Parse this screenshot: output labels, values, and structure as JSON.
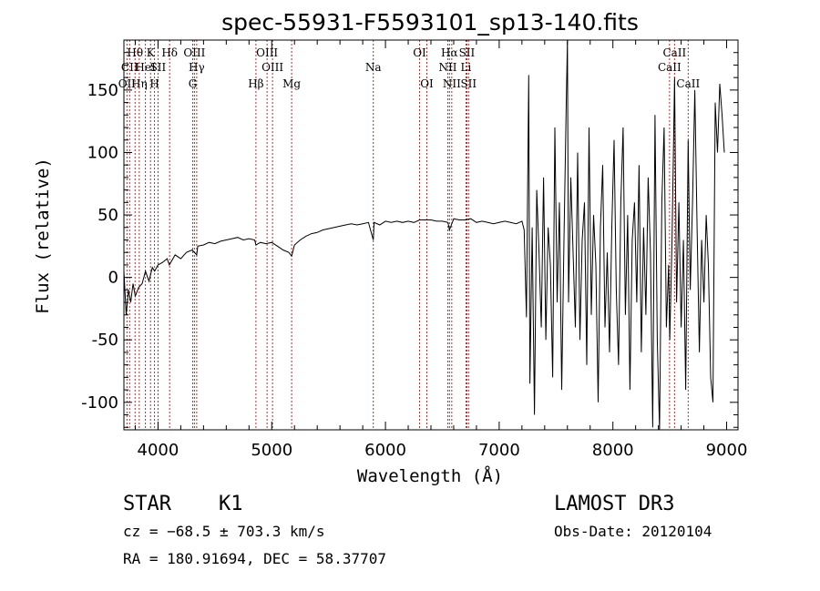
{
  "chart_data": {
    "type": "line",
    "title": "spec-55931-F5593101_sp13-140.fits",
    "xlabel": "Wavelength (Å)",
    "ylabel": "Flux (relative)",
    "xlim": [
      3700,
      9100
    ],
    "ylim": [
      -122,
      190
    ],
    "x_ticks": [
      4000,
      5000,
      6000,
      7000,
      8000,
      9000
    ],
    "y_ticks": [
      -100,
      -50,
      0,
      50,
      100,
      150
    ],
    "line_color": "#000000",
    "marker_color": "#b03030",
    "series": [
      {
        "name": "flux",
        "x": [
          3700,
          3720,
          3740,
          3760,
          3780,
          3800,
          3830,
          3860,
          3890,
          3920,
          3950,
          3970,
          4000,
          4040,
          4080,
          4100,
          4150,
          4200,
          4250,
          4300,
          4340,
          4350,
          4400,
          4450,
          4500,
          4550,
          4600,
          4650,
          4700,
          4750,
          4800,
          4850,
          4861,
          4900,
          4950,
          5000,
          5050,
          5100,
          5150,
          5175,
          5200,
          5250,
          5300,
          5350,
          5400,
          5450,
          5500,
          5550,
          5600,
          5650,
          5700,
          5750,
          5800,
          5850,
          5893,
          5900,
          5950,
          6000,
          6050,
          6100,
          6150,
          6200,
          6250,
          6300,
          6350,
          6400,
          6450,
          6500,
          6550,
          6563,
          6600,
          6650,
          6700,
          6750,
          6800,
          6850,
          6900,
          6950,
          7000,
          7050,
          7100,
          7150,
          7200,
          7220,
          7240,
          7260,
          7270,
          7290,
          7310,
          7330,
          7350,
          7370,
          7390,
          7410,
          7430,
          7450,
          7470,
          7490,
          7510,
          7530,
          7550,
          7570,
          7590,
          7600,
          7610,
          7630,
          7650,
          7670,
          7690,
          7710,
          7730,
          7750,
          7770,
          7790,
          7810,
          7830,
          7850,
          7870,
          7890,
          7910,
          7930,
          7950,
          7970,
          7990,
          8010,
          8030,
          8050,
          8070,
          8090,
          8110,
          8130,
          8150,
          8170,
          8190,
          8210,
          8230,
          8250,
          8270,
          8290,
          8310,
          8330,
          8350,
          8370,
          8390,
          8410,
          8430,
          8450,
          8470,
          8490,
          8500,
          8520,
          8542,
          8560,
          8580,
          8600,
          8620,
          8640,
          8662,
          8680,
          8700,
          8720,
          8740,
          8760,
          8780,
          8800,
          8820,
          8840,
          8860,
          8880,
          8900,
          8920,
          8940,
          8960,
          8980
        ],
        "y": [
          5,
          -30,
          -10,
          -20,
          -5,
          -15,
          -8,
          -5,
          5,
          -3,
          8,
          5,
          10,
          12,
          15,
          10,
          18,
          15,
          20,
          22,
          18,
          25,
          26,
          28,
          27,
          29,
          30,
          31,
          32,
          30,
          31,
          30,
          26,
          28,
          27,
          28,
          25,
          22,
          20,
          17,
          26,
          30,
          33,
          35,
          36,
          38,
          39,
          40,
          41,
          42,
          43,
          42,
          43,
          44,
          30,
          44,
          42,
          45,
          44,
          45,
          44,
          45,
          44,
          46,
          46,
          46,
          45,
          45,
          44,
          38,
          47,
          46,
          46,
          47,
          44,
          45,
          44,
          43,
          44,
          45,
          44,
          43,
          45,
          38,
          -32,
          162,
          -85,
          40,
          -110,
          70,
          20,
          -40,
          80,
          -50,
          40,
          10,
          -80,
          120,
          -20,
          60,
          -90,
          30,
          140,
          190,
          -20,
          80,
          20,
          -40,
          100,
          -50,
          30,
          60,
          -70,
          120,
          -30,
          50,
          10,
          -100,
          40,
          90,
          -40,
          20,
          -60,
          40,
          110,
          -10,
          -70,
          60,
          120,
          -30,
          50,
          -90,
          30,
          60,
          -20,
          90,
          -60,
          40,
          -30,
          80,
          20,
          -120,
          130,
          -50,
          -130,
          60,
          120,
          -40,
          10,
          -50,
          30,
          160,
          -20,
          60,
          -40,
          30,
          -90,
          110,
          -10,
          60,
          150,
          40,
          -60,
          30,
          -20,
          50,
          10,
          -80,
          -100,
          140,
          100,
          155,
          130,
          100
        ]
      }
    ],
    "lines": [
      {
        "label": "Hθ",
        "x": 3798,
        "row": 1
      },
      {
        "label": "CII",
        "x": 3750,
        "row": 2
      },
      {
        "label": "OII",
        "x": 3727,
        "row": 3
      },
      {
        "label": "Hη",
        "x": 3835,
        "row": 3
      },
      {
        "label": "HeI",
        "x": 3889,
        "row": 2
      },
      {
        "label": "K",
        "x": 3934,
        "row": 1
      },
      {
        "label": "H",
        "x": 3969,
        "row": 3
      },
      {
        "label": "SII",
        "x": 4000,
        "row": 2
      },
      {
        "label": "Hδ",
        "x": 4102,
        "row": 1
      },
      {
        "label": "OIII",
        "x": 4320,
        "row": 1
      },
      {
        "label": "Hγ",
        "x": 4340,
        "row": 2
      },
      {
        "label": "G",
        "x": 4305,
        "row": 3
      },
      {
        "label": "OIII",
        "x": 4959,
        "row": 1
      },
      {
        "label": "OIII",
        "x": 5007,
        "row": 2
      },
      {
        "label": "Hβ",
        "x": 4861,
        "row": 3
      },
      {
        "label": "Mg",
        "x": 5175,
        "row": 3
      },
      {
        "label": "Na",
        "x": 5893,
        "row": 2
      },
      {
        "label": "OI",
        "x": 6300,
        "row": 1
      },
      {
        "label": "OI",
        "x": 6364,
        "row": 3
      },
      {
        "label": "Hα",
        "x": 6563,
        "row": 1
      },
      {
        "label": "NII",
        "x": 6548,
        "row": 2
      },
      {
        "label": "NII",
        "x": 6583,
        "row": 3
      },
      {
        "label": "SII",
        "x": 6716,
        "row": 1
      },
      {
        "label": "Li",
        "x": 6708,
        "row": 2
      },
      {
        "label": "SII",
        "x": 6731,
        "row": 3
      },
      {
        "label": "CaII",
        "x": 8542,
        "row": 1
      },
      {
        "label": "CaII",
        "x": 8498,
        "row": 2
      },
      {
        "label": "CaII",
        "x": 8662,
        "row": 3
      }
    ]
  },
  "info": {
    "object_class": "STAR",
    "subclass": "K1",
    "survey": "LAMOST DR3",
    "cz_line": "cz = −68.5 ± 703.3 km/s",
    "obs_date": "Obs-Date: 20120104",
    "coords_line": "RA = 180.91694, DEC =  58.37707"
  }
}
